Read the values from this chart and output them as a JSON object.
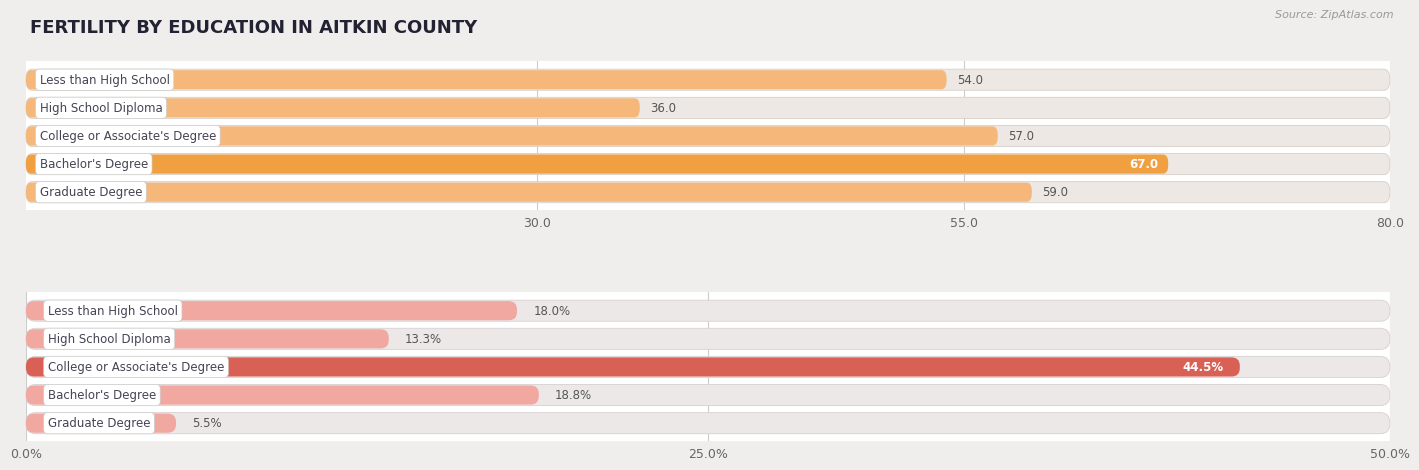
{
  "title": "FERTILITY BY EDUCATION IN AITKIN COUNTY",
  "source": "Source: ZipAtlas.com",
  "top_section": {
    "categories": [
      "Less than High School",
      "High School Diploma",
      "College or Associate's Degree",
      "Bachelor's Degree",
      "Graduate Degree"
    ],
    "values": [
      54.0,
      36.0,
      57.0,
      67.0,
      59.0
    ],
    "labels": [
      "54.0",
      "36.0",
      "57.0",
      "67.0",
      "59.0"
    ],
    "label_inside": [
      false,
      false,
      false,
      true,
      false
    ],
    "xlim": [
      0,
      80.0
    ],
    "xticks": [
      30.0,
      55.0,
      80.0
    ],
    "xtick_labels": [
      "30.0",
      "55.0",
      "80.0"
    ],
    "bar_color_normal": "#f5b87a",
    "bar_color_highlight": "#f0a040",
    "highlight_index": 3,
    "track_color": "#ede8e3",
    "track_edge_color": "#d8d0c8",
    "bg_color": "#ffffff"
  },
  "bottom_section": {
    "categories": [
      "Less than High School",
      "High School Diploma",
      "College or Associate's Degree",
      "Bachelor's Degree",
      "Graduate Degree"
    ],
    "values": [
      18.0,
      13.3,
      44.5,
      18.8,
      5.5
    ],
    "labels": [
      "18.0%",
      "13.3%",
      "44.5%",
      "18.8%",
      "5.5%"
    ],
    "label_inside": [
      false,
      false,
      true,
      false,
      false
    ],
    "xlim": [
      0,
      50.0
    ],
    "xticks": [
      0.0,
      25.0,
      50.0
    ],
    "xtick_labels": [
      "0.0%",
      "25.0%",
      "50.0%"
    ],
    "bar_color_normal": "#f0a8a0",
    "bar_color_highlight": "#d96055",
    "highlight_index": 2,
    "track_color": "#ede8e8",
    "track_edge_color": "#d8d0d0",
    "bg_color": "#ffffff"
  },
  "title_fontsize": 13,
  "tick_fontsize": 9,
  "bar_label_fontsize": 8.5,
  "category_fontsize": 8.5,
  "label_box_color": "#ffffff",
  "label_box_edge": "#cccccc",
  "label_text_color": "#444455"
}
